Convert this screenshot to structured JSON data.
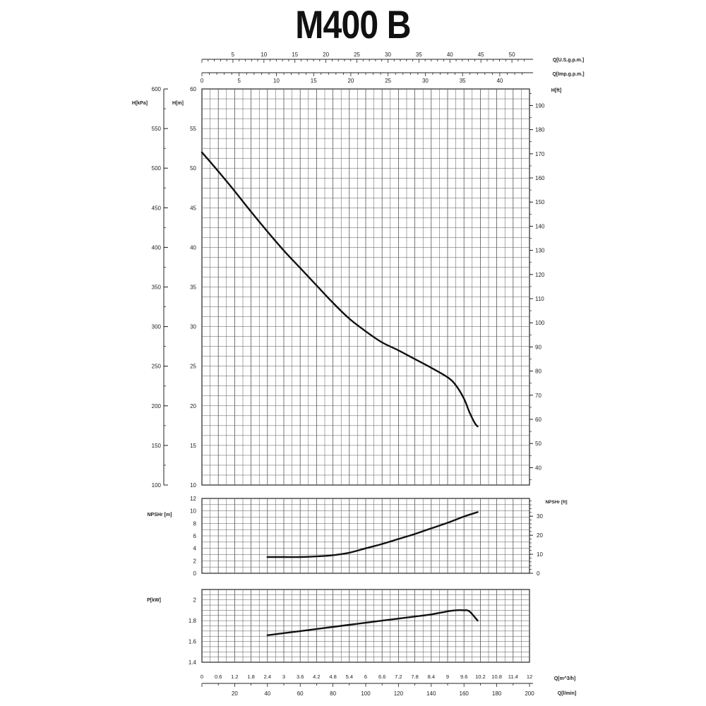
{
  "title": "M400 B",
  "chart_data": [
    {
      "name": "head",
      "type": "line",
      "x_unit": "Q[m^3/h]",
      "xlim": [
        0,
        12
      ],
      "ylim": [
        10,
        60
      ],
      "y_label_left": "H[m]",
      "y_label_left2": "H[kPa]",
      "y_label_right": "H[ft]",
      "kpa_range": [
        100,
        600
      ],
      "kpa_ticks": [
        100,
        150,
        200,
        250,
        300,
        350,
        400,
        450,
        500,
        550,
        600
      ],
      "m_ticks": [
        10,
        15,
        20,
        25,
        30,
        35,
        40,
        45,
        50,
        55,
        60
      ],
      "ft_ticks": [
        40,
        50,
        60,
        70,
        80,
        90,
        100,
        110,
        120,
        130,
        140,
        150,
        160,
        170,
        180,
        190
      ],
      "series": [
        {
          "x": [
            0,
            0.6,
            1.2,
            1.8,
            2.4,
            3.0,
            3.6,
            4.2,
            4.8,
            5.4,
            6.0,
            6.6,
            7.2,
            7.8,
            8.4,
            9.0,
            9.3,
            9.6,
            9.8,
            10.0,
            10.1
          ],
          "y": [
            52,
            49.6,
            47.1,
            44.5,
            42.0,
            39.6,
            37.4,
            35.2,
            33.0,
            31.0,
            29.4,
            28.0,
            27.0,
            25.9,
            24.8,
            23.6,
            22.6,
            20.9,
            19.2,
            17.8,
            17.4
          ]
        }
      ]
    },
    {
      "name": "npsh",
      "type": "line",
      "xlim": [
        0,
        12
      ],
      "ylim": [
        0,
        12
      ],
      "y_label_left": "NPSHr [m]",
      "y_label_right": "NPSHr [ft]",
      "m_ticks": [
        0,
        2,
        4,
        6,
        8,
        10,
        12
      ],
      "ft_ticks": [
        0,
        10,
        20,
        30
      ],
      "series": [
        {
          "x": [
            2.4,
            3.0,
            3.6,
            4.2,
            4.8,
            5.4,
            6.0,
            6.6,
            7.2,
            7.8,
            8.4,
            9.0,
            9.6,
            10.1
          ],
          "y": [
            2.6,
            2.6,
            2.6,
            2.7,
            2.9,
            3.3,
            4.0,
            4.7,
            5.5,
            6.3,
            7.2,
            8.1,
            9.1,
            9.8
          ]
        }
      ]
    },
    {
      "name": "power",
      "type": "line",
      "xlim": [
        0,
        12
      ],
      "ylim": [
        1.4,
        2.1
      ],
      "y_label_left": "P[kW]",
      "p_ticks": [
        1.4,
        1.6,
        1.8,
        2.0
      ],
      "p_tick_labels": [
        "1.4",
        "1.6",
        "1.8",
        "2"
      ],
      "series": [
        {
          "x": [
            2.4,
            3.0,
            3.6,
            4.2,
            4.8,
            5.4,
            6.0,
            6.6,
            7.2,
            7.8,
            8.4,
            9.0,
            9.3,
            9.6,
            9.8,
            10.1
          ],
          "y": [
            1.66,
            1.68,
            1.7,
            1.72,
            1.74,
            1.76,
            1.78,
            1.8,
            1.82,
            1.84,
            1.86,
            1.89,
            1.9,
            1.9,
            1.89,
            1.8
          ]
        }
      ]
    }
  ],
  "axes": {
    "top_usgpm": {
      "label": "Q[U.S.g.p.m.]",
      "per_m3h": 4.403,
      "ticks": [
        5,
        10,
        15,
        20,
        25,
        30,
        35,
        40,
        45,
        50
      ]
    },
    "top_impgpm": {
      "label": "Q[Imp.g.p.m.]",
      "per_m3h": 3.666,
      "ticks": [
        0,
        5,
        10,
        15,
        20,
        25,
        30,
        35,
        40
      ]
    },
    "bottom_m3h": {
      "label": "Q[m^3/h]",
      "ticks": [
        0,
        0.6,
        1.2,
        1.8,
        2.4,
        3,
        3.6,
        4.2,
        4.8,
        5.4,
        6,
        6.6,
        7.2,
        7.8,
        8.4,
        9,
        9.6,
        10.2,
        10.8,
        11.4,
        12
      ],
      "tick_labels": [
        "0",
        "0.6",
        "1.2",
        "1.8",
        "2.4",
        "3",
        "3.6",
        "4.2",
        "4.8",
        "5.4",
        "6",
        "6.6",
        "7.2",
        "7.8",
        "8.4",
        "9",
        "9.6",
        "10.2",
        "10.8",
        "11.4",
        "12"
      ]
    },
    "bottom_lmin": {
      "label": "Q[l/min]",
      "per_m3h": 16.6667,
      "ticks": [
        20,
        40,
        60,
        80,
        100,
        120,
        140,
        160,
        180,
        200
      ]
    }
  },
  "colors": {
    "curve": "#111111",
    "grid": "#555555",
    "frame": "#222222"
  }
}
